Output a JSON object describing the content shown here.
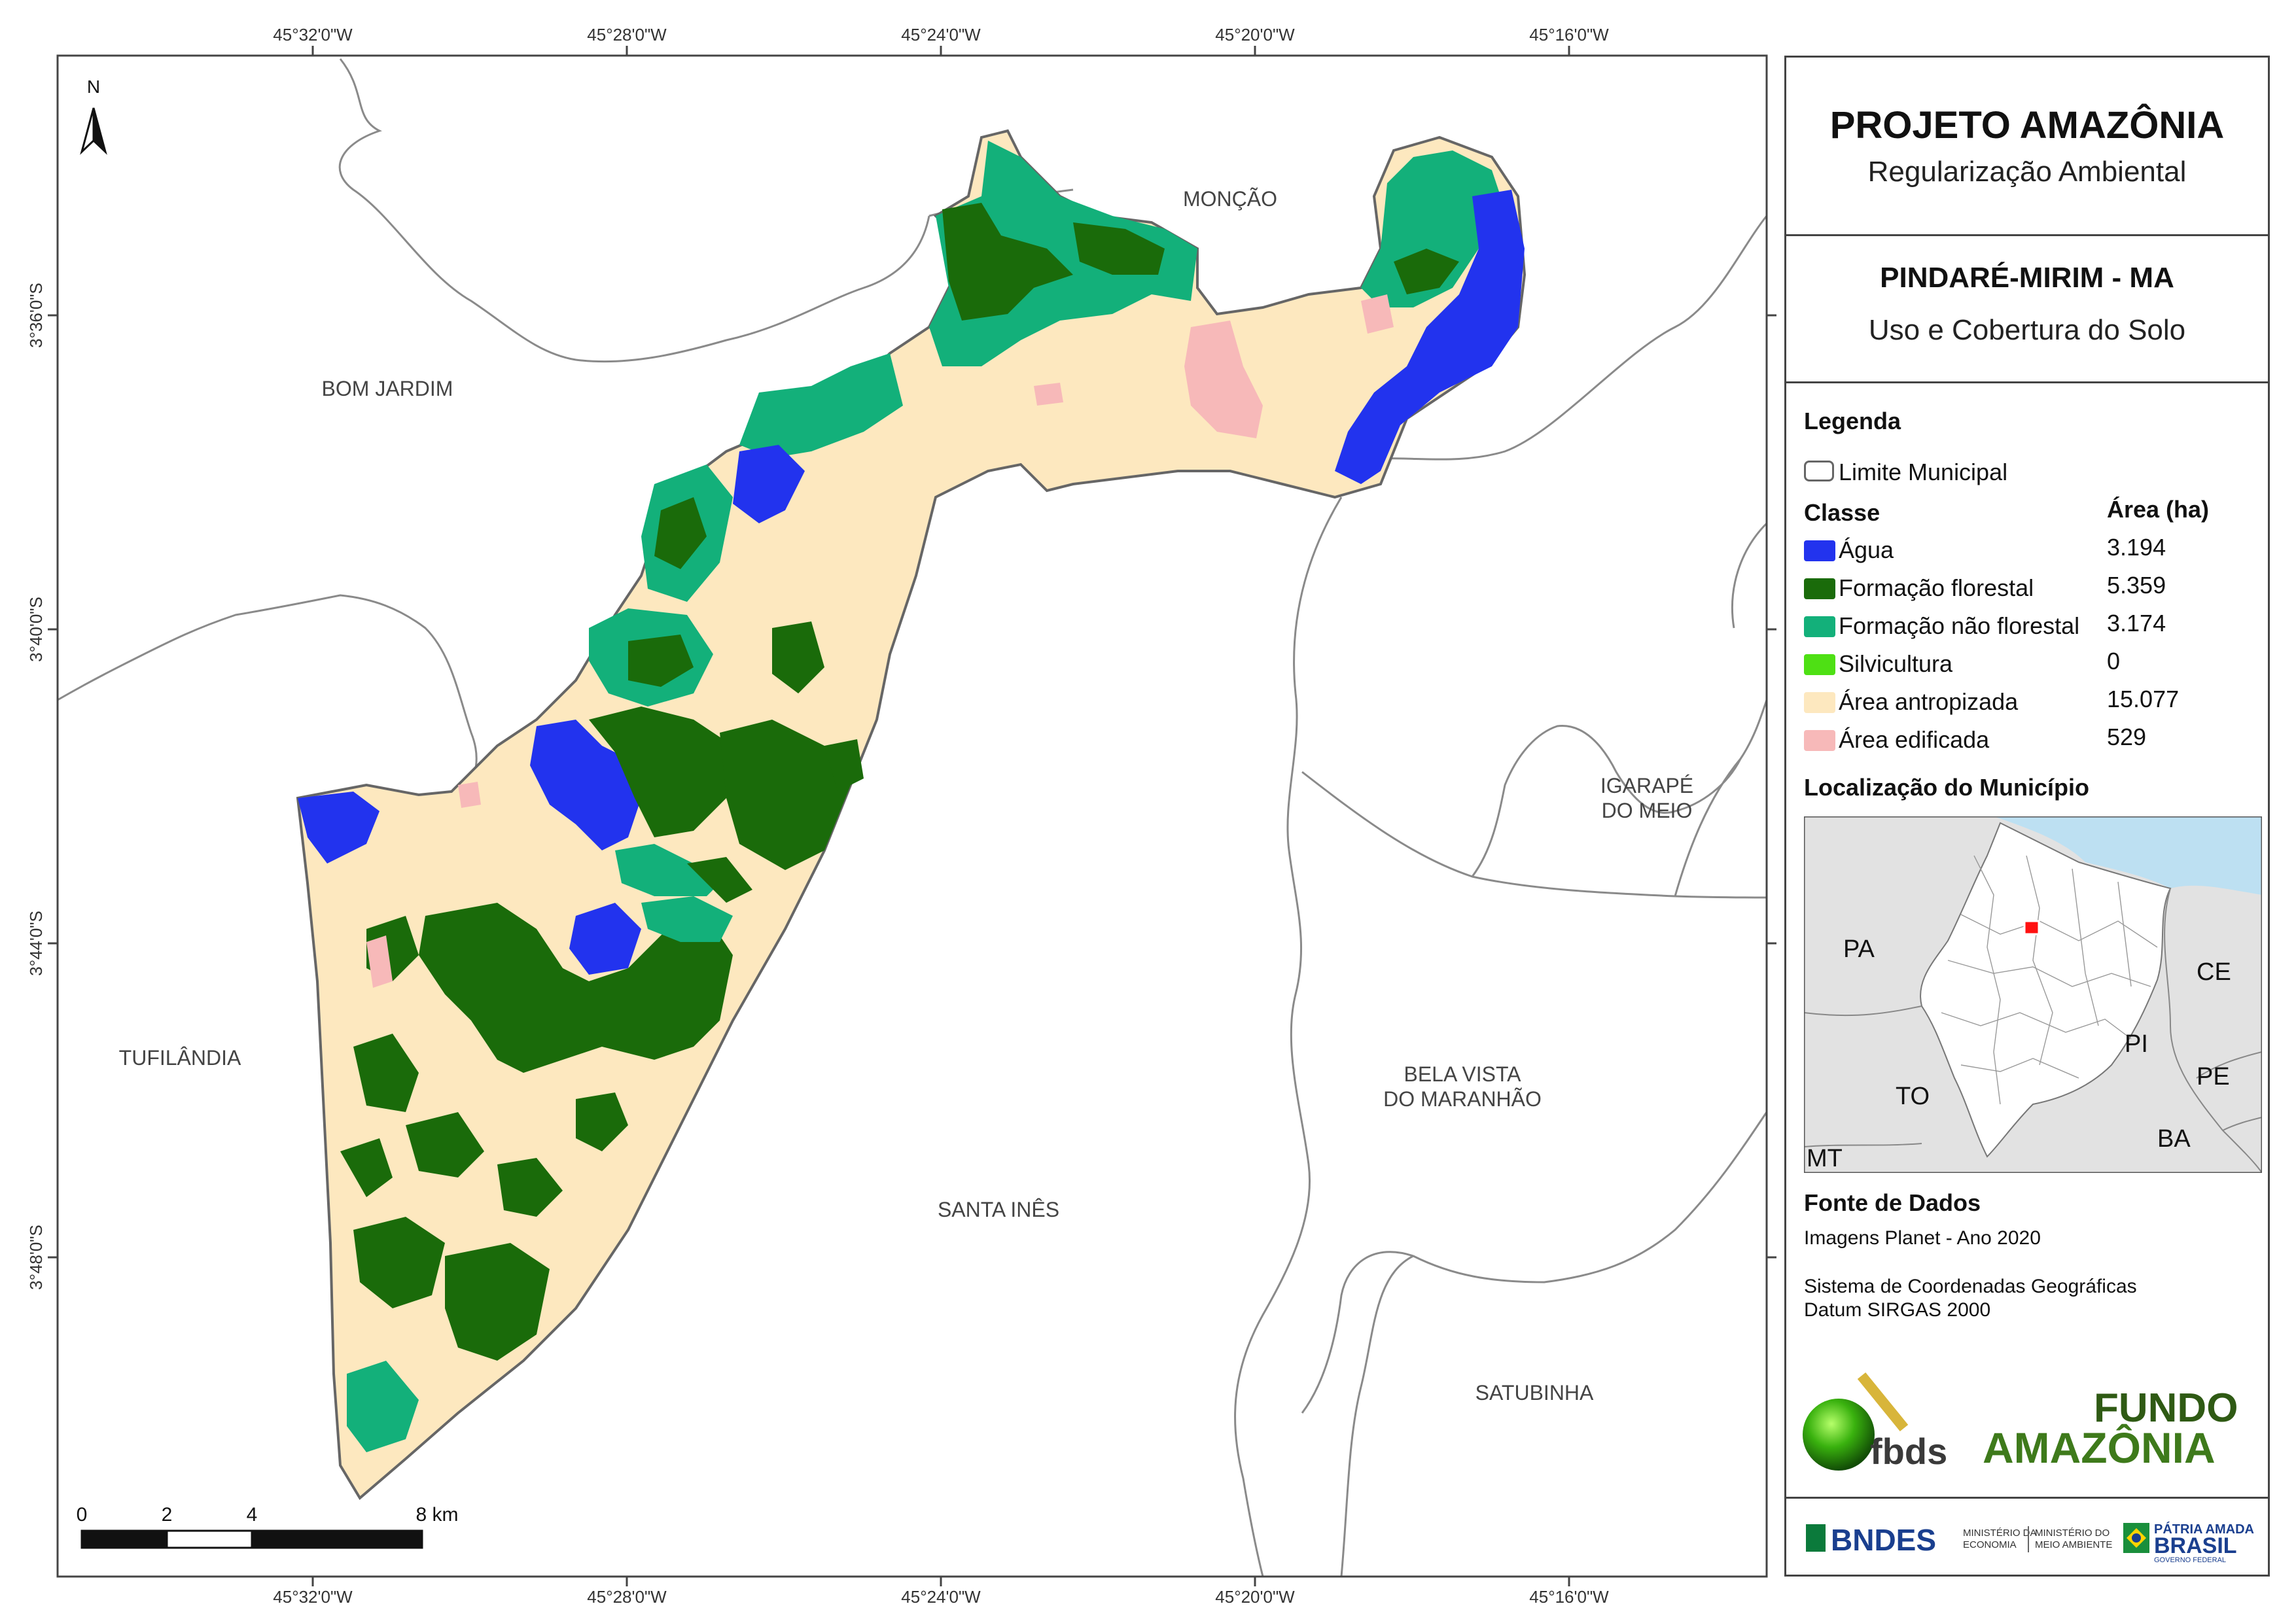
{
  "map": {
    "places": {
      "moncao": "MONÇÃO",
      "bom_jardim": "BOM JARDIM",
      "tufilandia": "TUFILÂNDIA",
      "igarape_line1": "IGARAPÉ",
      "igarape_line2": "DO MEIO",
      "bela_vista_line1": "BELA VISTA",
      "bela_vista_line2": "DO MARANHÃO",
      "santa_ines": "SANTA INÊS",
      "satubinha": "SATUBINHA"
    },
    "north_label": "N",
    "lon_ticks": [
      "45°32'0\"W",
      "45°28'0\"W",
      "45°24'0\"W",
      "45°20'0\"W",
      "45°16'0\"W"
    ],
    "lat_ticks": [
      "3°36'0\"S",
      "3°40'0\"S",
      "3°44'0\"S",
      "3°48'0\"S"
    ],
    "scale_labels": [
      "0",
      "2",
      "4",
      "8 km"
    ],
    "colors": {
      "agua": "#2233ee",
      "florestal": "#1a6b0a",
      "nao_florestal": "#13b07a",
      "silvicultura": "#4ee014",
      "antropizada": "#fde8bf",
      "edificada": "#f7b9b9",
      "boundary": "#666666"
    }
  },
  "panel": {
    "title": "PROJETO AMAZÔNIA",
    "subtitle": "Regularização Ambiental",
    "municipio": "PINDARÉ-MIRIM - MA",
    "tema": "Uso e Cobertura do Solo",
    "legenda": "Legenda",
    "limite": "Limite Municipal",
    "classe_header": "Classe",
    "area_header": "Área (ha)",
    "classes": [
      {
        "name": "Água",
        "area": "3.194",
        "color": "#2233ee"
      },
      {
        "name": "Formação florestal",
        "area": "5.359",
        "color": "#1a6b0a"
      },
      {
        "name": "Formação não florestal",
        "area": "3.174",
        "color": "#13b07a"
      },
      {
        "name": "Silvicultura",
        "area": "0",
        "color": "#4ee014"
      },
      {
        "name": "Área antropizada",
        "area": "15.077",
        "color": "#fde8bf"
      },
      {
        "name": "Área edificada",
        "area": "529",
        "color": "#f7b9b9"
      }
    ],
    "localizacao": "Localização do Município",
    "inset_labels": {
      "pa": "PA",
      "ce": "CE",
      "pi": "PI",
      "pe": "PE",
      "to": "TO",
      "ba": "BA",
      "mt": "MT"
    },
    "fonte": "Fonte de Dados",
    "imagens": "Imagens Planet - Ano 2020",
    "sistema": "Sistema de Coordenadas Geográficas",
    "datum": "Datum SIRGAS 2000",
    "logos": {
      "fbds": "fbds",
      "fundo1": "FUNDO",
      "fundo2": "AMAZÔNIA",
      "bndes": "BNDES",
      "min_eco1": "MINISTÉRIO DA",
      "min_eco2": "ECONOMIA",
      "min_amb1": "MINISTÉRIO DO",
      "min_amb2": "MEIO AMBIENTE",
      "patria1": "PÁTRIA AMADA",
      "patria2": "BRASIL",
      "patria3": "GOVERNO FEDERAL"
    }
  }
}
